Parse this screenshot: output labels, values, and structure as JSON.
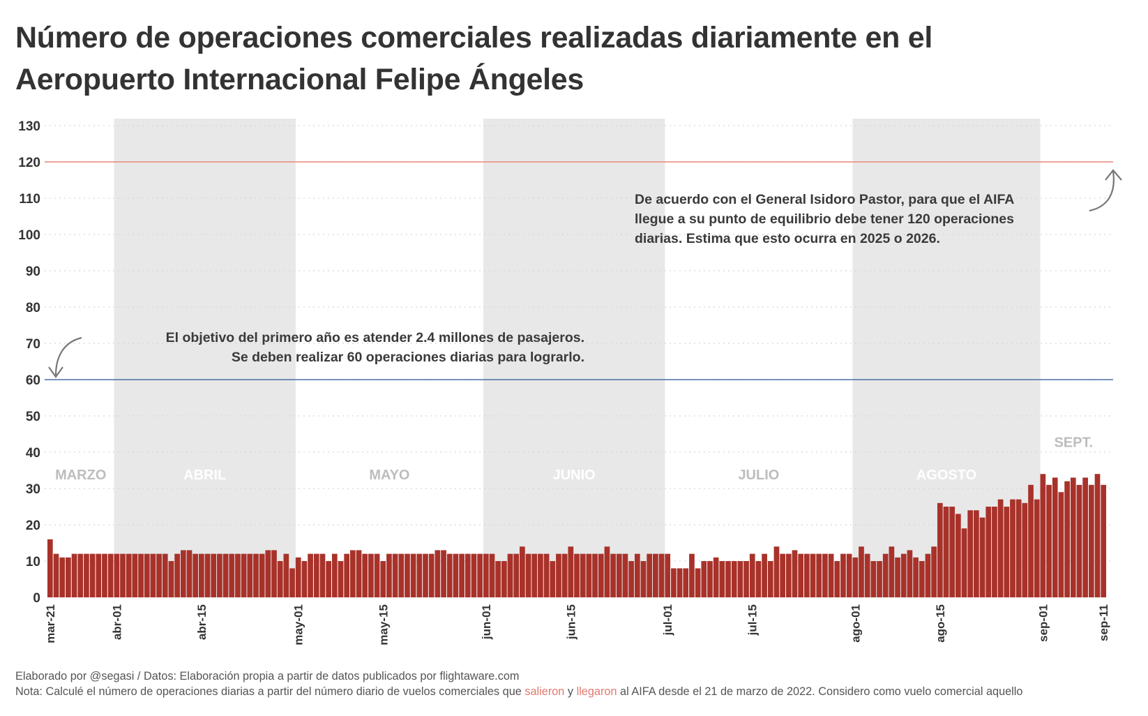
{
  "title": {
    "line1": "Número de operaciones comerciales realizadas diariamente en el",
    "line2": "Aeropuerto Internacional Felipe Ángeles"
  },
  "annotations": {
    "goal_120": [
      "De acuerdo con el General Isidoro Pastor, para que el AIFA",
      "llegue a su punto de equilibrio debe tener 120 operaciones",
      "diarias. Estima que esto ocurra en 2025 o 2026."
    ],
    "goal_60": [
      "El objetivo del primero año es atender 2.4 millones de pasajeros.",
      "Se deben realizar 60 operaciones diarias para lograrlo."
    ]
  },
  "footer": {
    "credit": "Elaborado por @segasi / Datos: Elaboración propia a partir de datos publicados por flightaware.com",
    "note_start": "Nota: Calculé el número de operaciones diarias a partir del número diario de vuelos comerciales que",
    "note_salieron": "salieron",
    "note_y": "y",
    "note_llegaron": "llegaron",
    "note_end": "al AIFA desde el 21 de marzo de 2022. Considero como vuelo comercial aquello"
  },
  "colors": {
    "bar": "#a8322a",
    "band": "#e8e8e8",
    "line_120": "#e8877c",
    "line_60": "#4a6fa5",
    "month_label_on_white": "#bdbdbd",
    "month_label_on_band": "#ffffff",
    "highlight": "#e07a6f"
  },
  "chart_data": {
    "type": "bar",
    "title": "Número de operaciones comerciales realizadas diariamente en el Aeropuerto Internacional Felipe Ángeles",
    "xlabel": "",
    "ylabel": "",
    "ylim": [
      0,
      130
    ],
    "yticks": [
      0,
      10,
      20,
      30,
      40,
      50,
      60,
      70,
      80,
      90,
      100,
      110,
      120,
      130
    ],
    "grid": "horizontal dotted",
    "year": 2022,
    "months": [
      {
        "key": "mar",
        "label": "MARZO",
        "band": false,
        "first_day": 21,
        "values": [
          16,
          12,
          11,
          11,
          12,
          12,
          12,
          12,
          12,
          12,
          12
        ]
      },
      {
        "key": "abr",
        "label": "ABRIL",
        "band": true,
        "first_day": 1,
        "values": [
          12,
          12,
          12,
          12,
          12,
          12,
          12,
          12,
          12,
          10,
          12,
          13,
          13,
          12,
          12,
          12,
          12,
          12,
          12,
          12,
          12,
          12,
          12,
          12,
          12,
          13,
          13,
          10,
          12,
          8
        ]
      },
      {
        "key": "may",
        "label": "MAYO",
        "band": false,
        "first_day": 1,
        "values": [
          11,
          10,
          12,
          12,
          12,
          10,
          12,
          10,
          12,
          13,
          13,
          12,
          12,
          12,
          10,
          12,
          12,
          12,
          12,
          12,
          12,
          12,
          12,
          13,
          13,
          12,
          12,
          12,
          12,
          12,
          12
        ]
      },
      {
        "key": "jun",
        "label": "JUNIO",
        "band": true,
        "first_day": 1,
        "values": [
          12,
          12,
          10,
          10,
          12,
          12,
          14,
          12,
          12,
          12,
          12,
          10,
          12,
          12,
          14,
          12,
          12,
          12,
          12,
          12,
          14,
          12,
          12,
          12,
          10,
          12,
          10,
          12,
          12,
          12
        ]
      },
      {
        "key": "jul",
        "label": "JULIO",
        "band": false,
        "first_day": 1,
        "values": [
          12,
          8,
          8,
          8,
          12,
          8,
          10,
          10,
          11,
          10,
          10,
          10,
          10,
          10,
          12,
          10,
          12,
          10,
          14,
          12,
          12,
          13,
          12,
          12,
          12,
          12,
          12,
          12,
          10,
          12,
          12
        ]
      },
      {
        "key": "ago",
        "label": "AGOSTO",
        "band": true,
        "first_day": 1,
        "values": [
          11,
          14,
          12,
          10,
          10,
          12,
          14,
          11,
          12,
          13,
          11,
          10,
          12,
          14,
          26,
          25,
          25,
          23,
          19,
          24,
          24,
          22,
          25,
          25,
          27,
          25,
          27,
          27,
          26,
          31,
          27
        ]
      },
      {
        "key": "sep",
        "label": "SEPT.",
        "band": false,
        "first_day": 1,
        "values": [
          34,
          31,
          33,
          29,
          32,
          33,
          31,
          33,
          31,
          34,
          31
        ]
      }
    ],
    "xtick_labels": [
      "mar-21",
      "abr-01",
      "abr-15",
      "may-01",
      "may-15",
      "jun-01",
      "jun-15",
      "jul-01",
      "jul-15",
      "ago-01",
      "ago-15",
      "sep-01",
      "sep-11"
    ],
    "reference_lines": [
      {
        "value": 120,
        "color": "#e8877c"
      },
      {
        "value": 60,
        "color": "#4a6fa5"
      }
    ]
  }
}
